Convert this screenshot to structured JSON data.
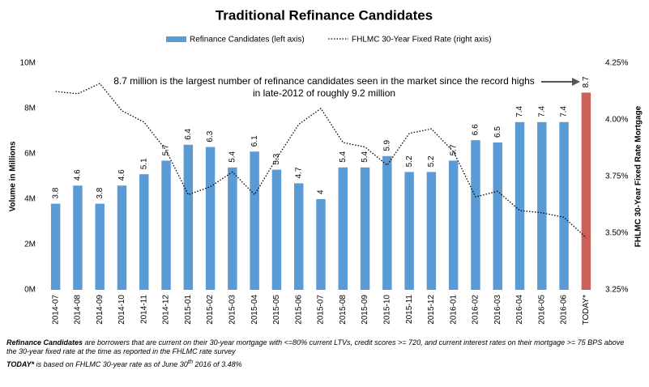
{
  "chart_data": {
    "type": "bar",
    "title": "Traditional Refinance Candidates",
    "annotation": [
      "8.7 million is the largest number of refinance candidates seen in the market since the record highs",
      "in late-2012 of roughly 9.2 million"
    ],
    "ylabel": "Volume in Millions",
    "y2label": "FHLMC 30-Year Fixed Rate Mortgage",
    "categories": [
      "2014-07",
      "2014-08",
      "2014-09",
      "2014-10",
      "2014-11",
      "2014-12",
      "2015-01",
      "2015-02",
      "2015-03",
      "2015-04",
      "2015-05",
      "2015-06",
      "2015-07",
      "2015-08",
      "2015-09",
      "2015-10",
      "2015-11",
      "2015-12",
      "2016-01",
      "2016-02",
      "2016-03",
      "2016-04",
      "2016-05",
      "2016-06",
      "TODAY*"
    ],
    "series": [
      {
        "name": "Refinance Candidates (left axis)",
        "type": "bar",
        "color": "#5b9bd5",
        "colors": [
          "#5b9bd5",
          "#5b9bd5",
          "#5b9bd5",
          "#5b9bd5",
          "#5b9bd5",
          "#5b9bd5",
          "#5b9bd5",
          "#5b9bd5",
          "#5b9bd5",
          "#5b9bd5",
          "#5b9bd5",
          "#5b9bd5",
          "#5b9bd5",
          "#5b9bd5",
          "#5b9bd5",
          "#5b9bd5",
          "#5b9bd5",
          "#5b9bd5",
          "#5b9bd5",
          "#5b9bd5",
          "#5b9bd5",
          "#5b9bd5",
          "#5b9bd5",
          "#5b9bd5",
          "#c9615a"
        ],
        "values": [
          3.8,
          4.6,
          3.8,
          4.6,
          5.1,
          5.7,
          6.4,
          6.3,
          5.4,
          6.1,
          5.3,
          4.7,
          4.0,
          5.4,
          5.4,
          5.9,
          5.2,
          5.2,
          5.7,
          6.6,
          6.5,
          7.4,
          7.4,
          7.4,
          8.7
        ]
      },
      {
        "name": "FHLMC 30-Year Fixed Rate (right axis)",
        "type": "line",
        "axis": "y2",
        "color": "#000000",
        "values": [
          4.125,
          4.115,
          4.16,
          4.04,
          3.99,
          3.865,
          3.67,
          3.705,
          3.77,
          3.67,
          3.83,
          3.98,
          4.05,
          3.9,
          3.88,
          3.8,
          3.94,
          3.96,
          3.86,
          3.66,
          3.685,
          3.6,
          3.59,
          3.57,
          3.48
        ]
      }
    ],
    "ylim": [
      0,
      10
    ],
    "yticks": [
      {
        "value": 0,
        "label": "0M"
      },
      {
        "value": 2,
        "label": "2M"
      },
      {
        "value": 4,
        "label": "4M"
      },
      {
        "value": 6,
        "label": "6M"
      },
      {
        "value": 8,
        "label": "8M"
      },
      {
        "value": 10,
        "label": "10M"
      }
    ],
    "y2lim": [
      3.25,
      4.25
    ],
    "y2ticks": [
      {
        "value": 3.25,
        "label": "3.25%"
      },
      {
        "value": 3.5,
        "label": "3.50%"
      },
      {
        "value": 3.75,
        "label": "3.75%"
      },
      {
        "value": 4,
        "label": "4.00%"
      },
      {
        "value": 4.25,
        "label": "4.25%"
      }
    ],
    "grid": false,
    "notes": [
      {
        "bold": "Refinance Candidates",
        "text": " are borrowers that are current on their 30-year mortgage with <=80% current LTVs, credit scores >= 720, and current interest rates on their mortgage >= 75 BPS above the 30-year fixed rate at the time as reported in the FHLMC rate survey"
      },
      {
        "bold": "TODAY*",
        "text": " is based on FHLMC 30-year rate as of June 30",
        "sup": "th",
        "text2": " 2016 of 3.48%"
      }
    ]
  }
}
